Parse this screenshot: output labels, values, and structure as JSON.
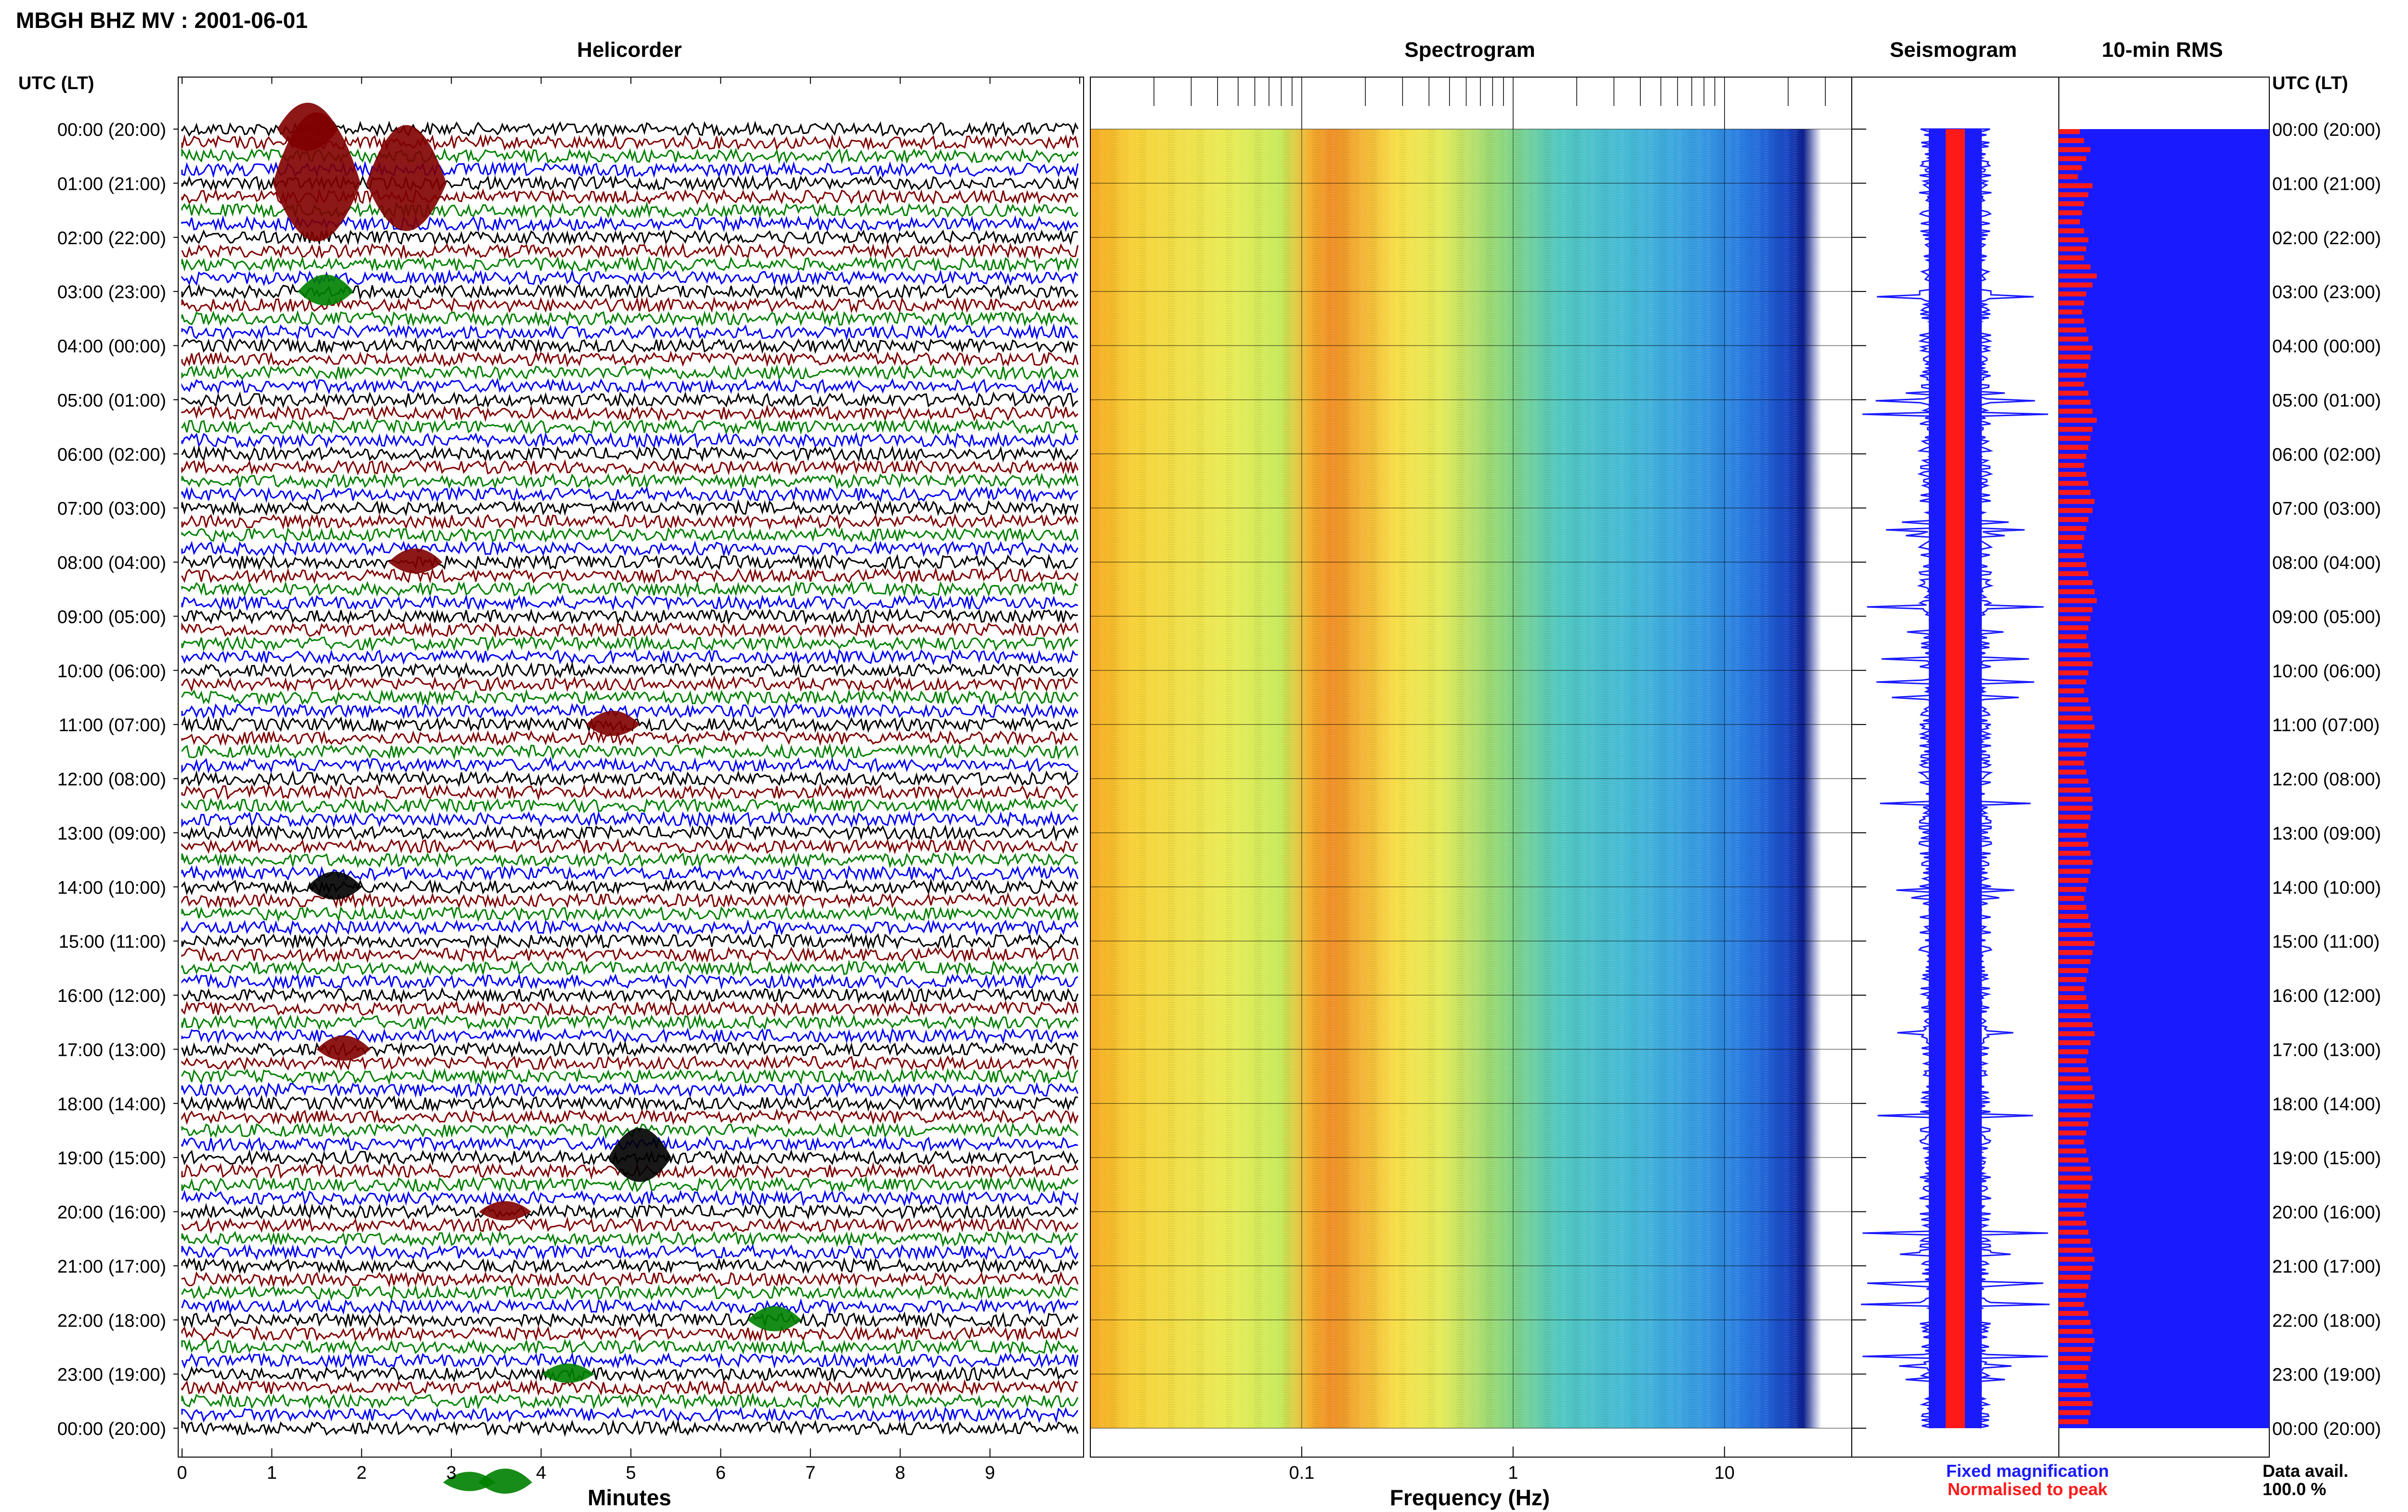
{
  "header": {
    "title": "MBGH BHZ MV : 2001-06-01"
  },
  "panels": {
    "helicorder_title": "Helicorder",
    "spectrogram_title": "Spectrogram",
    "seismogram_title": "Seismogram",
    "rms_title": "10-min RMS"
  },
  "axes": {
    "left_axis_label": "UTC (LT)",
    "right_axis_label": "UTC (LT)",
    "helicorder_xlabel": "Minutes",
    "spectrogram_xlabel": "Frequency (Hz)"
  },
  "legend": {
    "fixed": "Fixed magnification",
    "normalised": "Normalised to peak",
    "fixed_color": "#1a1aff",
    "normalised_color": "#ff1a1a",
    "data_avail_label": "Data avail.",
    "data_avail_value": "100.0 %"
  },
  "chart_data": {
    "type": "heatmap",
    "title": "MBGH BHZ MV : 2001-06-01",
    "hour_labels": [
      "00:00 (20:00)",
      "01:00 (21:00)",
      "02:00 (22:00)",
      "03:00 (23:00)",
      "04:00 (00:00)",
      "05:00 (01:00)",
      "06:00 (02:00)",
      "07:00 (03:00)",
      "08:00 (04:00)",
      "09:00 (05:00)",
      "10:00 (06:00)",
      "11:00 (07:00)",
      "12:00 (08:00)",
      "13:00 (09:00)",
      "14:00 (10:00)",
      "15:00 (11:00)",
      "16:00 (12:00)",
      "17:00 (13:00)",
      "18:00 (14:00)",
      "19:00 (15:00)",
      "20:00 (16:00)",
      "21:00 (17:00)",
      "22:00 (18:00)",
      "23:00 (19:00)",
      "00:00 (20:00)"
    ],
    "minutes_ticks": [
      0,
      1,
      2,
      3,
      4,
      5,
      6,
      7,
      8,
      9
    ],
    "frequency_ticks": [
      0.1,
      1,
      10
    ],
    "frequency_range_hz": [
      0.01,
      40
    ],
    "helicorder_colors": [
      "#000000",
      "#800000",
      "#008000",
      "#0000ff"
    ],
    "helicorder_events": [
      {
        "row": 1,
        "minute": 1.5,
        "amp": 22,
        "color": "#800000"
      },
      {
        "row": 1,
        "minute": 2.5,
        "amp": 18,
        "color": "#800000"
      },
      {
        "row": 0,
        "minute": 1.4,
        "amp": 8,
        "color": "#800000"
      },
      {
        "row": 3,
        "minute": 1.6,
        "amp": 5,
        "color": "#008000"
      },
      {
        "row": 8,
        "minute": 2.6,
        "amp": 4,
        "color": "#800000"
      },
      {
        "row": 11,
        "minute": 4.8,
        "amp": 4,
        "color": "#800000"
      },
      {
        "row": 14,
        "minute": 1.7,
        "amp": 4.5,
        "color": "#000000"
      },
      {
        "row": 17,
        "minute": 1.8,
        "amp": 4,
        "color": "#800000"
      },
      {
        "row": 19,
        "minute": 5.1,
        "amp": 9,
        "color": "#000000"
      },
      {
        "row": 20,
        "minute": 3.6,
        "amp": 3,
        "color": "#800000"
      },
      {
        "row": 22,
        "minute": 6.6,
        "amp": 4,
        "color": "#008000"
      },
      {
        "row": 23,
        "minute": 4.3,
        "amp": 3,
        "color": "#008000"
      },
      {
        "row": 25,
        "minute": 3.6,
        "amp": 4,
        "color": "#008000"
      },
      {
        "row": 25,
        "minute": 3.2,
        "amp": 3,
        "color": "#008000"
      }
    ],
    "rms_normalised": [
      0.1,
      0.12,
      0.15,
      0.13,
      0.11,
      0.09,
      0.16,
      0.14,
      0.12,
      0.11,
      0.1,
      0.12,
      0.14,
      0.13,
      0.12,
      0.15,
      0.18,
      0.16,
      0.13,
      0.12,
      0.11,
      0.12,
      0.13,
      0.14,
      0.16,
      0.15,
      0.14,
      0.13,
      0.12,
      0.14,
      0.15,
      0.16,
      0.18,
      0.16,
      0.15,
      0.14,
      0.13,
      0.12,
      0.13,
      0.14,
      0.15,
      0.17,
      0.16,
      0.14,
      0.13,
      0.12,
      0.11,
      0.12,
      0.13,
      0.14,
      0.16,
      0.17,
      0.18,
      0.16,
      0.15,
      0.14,
      0.13,
      0.14,
      0.15,
      0.16,
      0.14,
      0.13,
      0.12,
      0.14,
      0.15,
      0.16,
      0.17,
      0.15,
      0.14,
      0.13,
      0.12,
      0.13,
      0.14,
      0.15,
      0.16,
      0.16,
      0.15,
      0.14,
      0.13,
      0.14,
      0.15,
      0.16,
      0.15,
      0.14,
      0.13,
      0.12,
      0.13,
      0.14,
      0.15,
      0.16,
      0.17,
      0.16,
      0.15,
      0.14,
      0.13,
      0.12,
      0.13,
      0.14,
      0.15,
      0.16,
      0.17,
      0.15,
      0.14,
      0.13,
      0.14,
      0.15,
      0.16,
      0.17,
      0.16,
      0.15,
      0.14,
      0.13,
      0.12,
      0.13,
      0.14,
      0.15,
      0.16,
      0.15,
      0.14,
      0.13,
      0.12,
      0.13,
      0.14,
      0.15,
      0.16,
      0.17,
      0.16,
      0.15,
      0.14,
      0.13,
      0.12,
      0.14,
      0.15,
      0.16,
      0.17,
      0.16,
      0.15,
      0.14,
      0.13,
      0.14,
      0.15,
      0.16,
      0.15,
      0.14
    ]
  }
}
